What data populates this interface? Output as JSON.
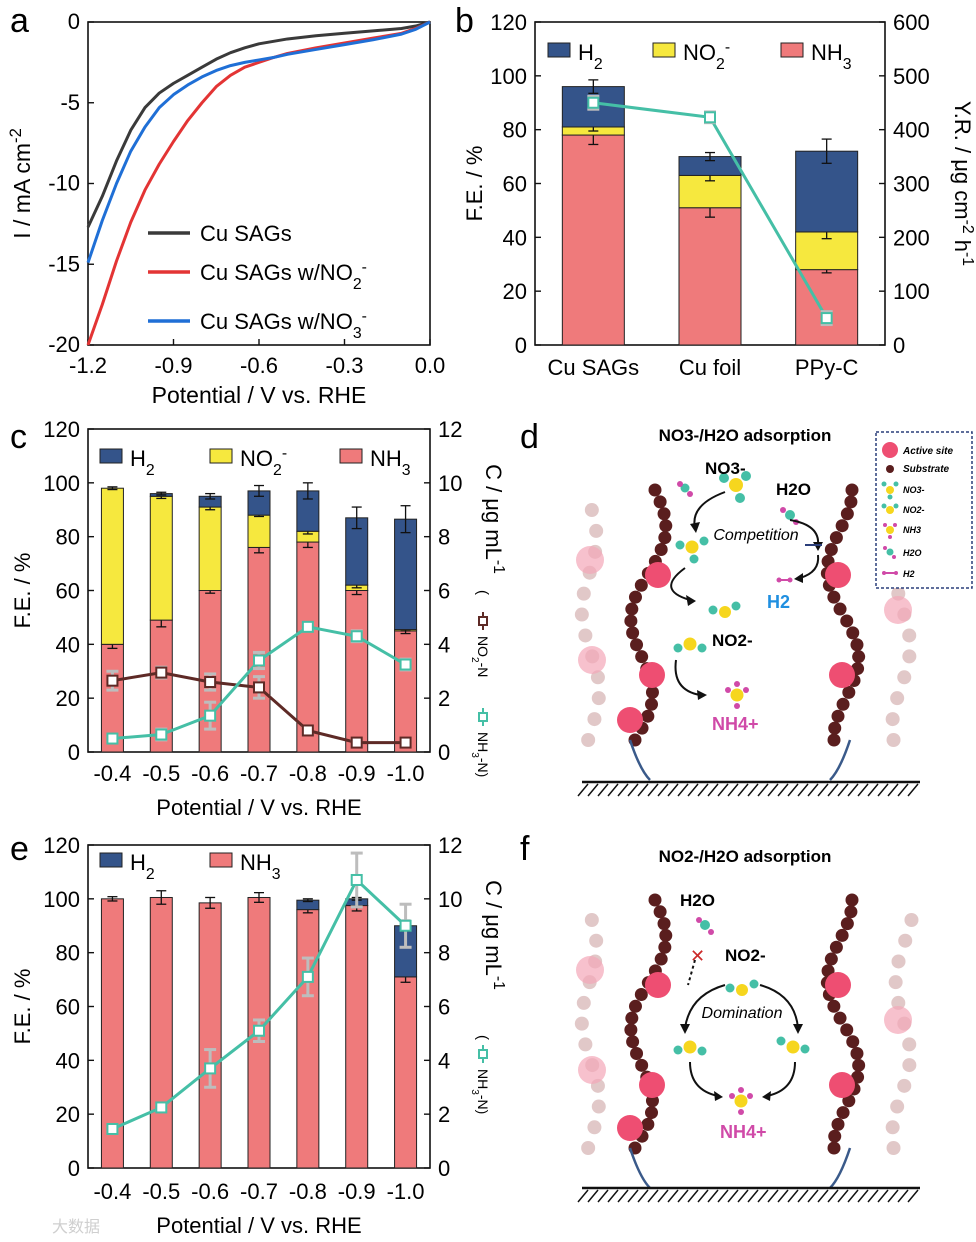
{
  "panel_letters": {
    "a": "a",
    "b": "b",
    "c": "c",
    "d": "d",
    "e": "e",
    "f": "f"
  },
  "colors": {
    "h2": "#34548a",
    "no2": "#f6e83e",
    "nh3": "#ef7a7b",
    "line_teal": "#45bfa6",
    "line_brown": "#5e2a26",
    "black_curve": "#3a3a3a",
    "red_curve": "#e33434",
    "blue_curve": "#1f6fd6",
    "active_site": "#ee4e72",
    "substrate": "#5a1e1e",
    "outline": "#222222"
  },
  "chart_data": [
    {
      "panel": "a",
      "type": "line",
      "xlabel": "Potential / V vs. RHE",
      "ylabel": "I / mA cm-2",
      "xlim": [
        -1.2,
        0.0
      ],
      "ylim": [
        -20,
        0
      ],
      "x_ticks": [
        "-1.2",
        "-0.9",
        "-0.6",
        "-0.3",
        "0.0"
      ],
      "y_ticks": [
        "0",
        "-5",
        "-10",
        "-15",
        "-20"
      ],
      "legend": [
        "Cu SAGs",
        "Cu SAGs w/NO2-",
        "Cu SAGs w/NO3-"
      ],
      "series": [
        {
          "name": "Cu SAGs",
          "color": "#3a3a3a",
          "x": [
            -1.2,
            -1.15,
            -1.1,
            -1.05,
            -1.0,
            -0.95,
            -0.9,
            -0.85,
            -0.8,
            -0.75,
            -0.7,
            -0.65,
            -0.6,
            -0.5,
            -0.4,
            -0.3,
            -0.2,
            -0.1,
            -0.05,
            0.0
          ],
          "y": [
            -12.7,
            -10.8,
            -8.6,
            -6.7,
            -5.3,
            -4.4,
            -3.8,
            -3.3,
            -2.8,
            -2.3,
            -1.9,
            -1.6,
            -1.35,
            -1.05,
            -0.85,
            -0.7,
            -0.55,
            -0.4,
            -0.25,
            0.0
          ]
        },
        {
          "name": "Cu SAGs w/NO2-",
          "color": "#e33434",
          "x": [
            -1.2,
            -1.15,
            -1.1,
            -1.05,
            -1.0,
            -0.95,
            -0.9,
            -0.85,
            -0.8,
            -0.75,
            -0.7,
            -0.65,
            -0.6,
            -0.55,
            -0.5,
            -0.4,
            -0.3,
            -0.2,
            -0.1,
            -0.05,
            0.0
          ],
          "y": [
            -20.0,
            -17.5,
            -14.8,
            -12.4,
            -10.4,
            -8.8,
            -7.4,
            -6.1,
            -5.0,
            -4.0,
            -3.3,
            -2.8,
            -2.5,
            -2.2,
            -1.95,
            -1.6,
            -1.3,
            -1.0,
            -0.7,
            -0.4,
            0.0
          ]
        },
        {
          "name": "Cu SAGs w/NO3-",
          "color": "#1f6fd6",
          "x": [
            -1.2,
            -1.15,
            -1.1,
            -1.05,
            -1.0,
            -0.95,
            -0.9,
            -0.85,
            -0.8,
            -0.75,
            -0.7,
            -0.65,
            -0.6,
            -0.55,
            -0.5,
            -0.4,
            -0.3,
            -0.2,
            -0.1,
            -0.05,
            0.0
          ],
          "y": [
            -14.9,
            -12.3,
            -10.0,
            -8.0,
            -6.5,
            -5.3,
            -4.5,
            -3.9,
            -3.4,
            -3.0,
            -2.7,
            -2.5,
            -2.35,
            -2.2,
            -2.0,
            -1.7,
            -1.4,
            -1.1,
            -0.75,
            -0.45,
            0.0
          ]
        }
      ]
    },
    {
      "panel": "b",
      "type": "bar",
      "categories": [
        "Cu SAGs",
        "Cu foil",
        "PPy-C"
      ],
      "ylabel": "F.E. / %",
      "ylim": [
        0,
        120
      ],
      "y_ticks": [
        "0",
        "20",
        "40",
        "60",
        "80",
        "100",
        "120"
      ],
      "y2label": "Y.R. / μg cm-2 h-1",
      "y2lim": [
        0,
        600
      ],
      "y2_ticks": [
        "0",
        "100",
        "200",
        "300",
        "400",
        "500",
        "600"
      ],
      "legend": [
        "H2",
        "NO2-",
        "NH3"
      ],
      "series": [
        {
          "name": "NH3",
          "values": [
            78,
            51,
            28
          ],
          "errors": [
            3.5,
            3.5,
            1.2
          ]
        },
        {
          "name": "NO2-",
          "values": [
            3,
            12,
            14
          ],
          "errors": [
            1.5,
            2,
            2.5
          ]
        },
        {
          "name": "H2",
          "values": [
            15,
            7,
            30
          ],
          "errors": [
            2.5,
            1.5,
            4.5
          ]
        }
      ],
      "yield_rate": {
        "values": [
          450,
          423,
          50
        ],
        "errors": [
          12,
          10,
          12
        ]
      }
    },
    {
      "panel": "c",
      "type": "bar",
      "categories": [
        "-0.4",
        "-0.5",
        "-0.6",
        "-0.7",
        "-0.8",
        "-0.9",
        "-1.0"
      ],
      "xlabel": "Potential / V vs. RHE",
      "ylabel": "F.E. / %",
      "ylim": [
        0,
        120
      ],
      "y_ticks": [
        "0",
        "20",
        "40",
        "60",
        "80",
        "100",
        "120"
      ],
      "y2label": "C / μg mL-1",
      "y2lim": [
        0,
        12
      ],
      "y2_ticks": [
        "0",
        "2",
        "4",
        "6",
        "8",
        "10",
        "12"
      ],
      "legend": [
        "H2",
        "NO2-",
        "NH3"
      ],
      "series": [
        {
          "name": "NH3",
          "values": [
            40,
            49,
            60,
            76,
            78,
            60,
            45
          ],
          "errors": [
            1.5,
            2.5,
            1,
            2,
            2,
            1.5,
            1
          ]
        },
        {
          "name": "NO2-",
          "values": [
            58,
            46,
            31,
            12,
            4,
            2,
            0.5
          ],
          "errors": [
            0.5,
            0.8,
            1,
            0.5,
            1,
            1,
            0.5
          ]
        },
        {
          "name": "H2",
          "values": [
            0,
            1,
            4,
            9,
            15,
            25,
            41
          ],
          "errors": [
            0,
            0.5,
            1,
            2,
            3,
            4,
            5
          ]
        }
      ],
      "lines": [
        {
          "name": "NO2--N",
          "values": [
            2.65,
            2.95,
            2.6,
            2.4,
            0.8,
            0.35,
            0.35
          ],
          "errors": [
            0.35,
            0.2,
            0.3,
            0.4,
            0.15,
            0.1,
            0.1
          ]
        },
        {
          "name": "NH3-N",
          "values": [
            0.5,
            0.65,
            1.35,
            3.4,
            4.65,
            4.3,
            3.25
          ],
          "errors": [
            0.1,
            0.2,
            0.5,
            0.3,
            0.1,
            0.2,
            0.2
          ]
        }
      ],
      "line_labels": [
        "NO2--N",
        "NH3-N"
      ]
    },
    {
      "panel": "e",
      "type": "bar",
      "categories": [
        "-0.4",
        "-0.5",
        "-0.6",
        "-0.7",
        "-0.8",
        "-0.9",
        "-1.0"
      ],
      "xlabel": "Potential / V vs. RHE",
      "ylabel": "F.E. / %",
      "ylim": [
        0,
        120
      ],
      "y_ticks": [
        "0",
        "20",
        "40",
        "60",
        "80",
        "100",
        "120"
      ],
      "y2label": "C / μg mL-1",
      "y2lim": [
        0,
        12
      ],
      "y2_ticks": [
        "0",
        "2",
        "4",
        "6",
        "8",
        "10",
        "12"
      ],
      "legend": [
        "H2",
        "NH3"
      ],
      "series": [
        {
          "name": "NH3",
          "values": [
            100,
            100.5,
            98.5,
            100.5,
            96,
            97.5,
            71
          ],
          "errors": [
            0.8,
            2.5,
            2,
            1.8,
            1.2,
            2,
            2
          ]
        },
        {
          "name": "H2",
          "values": [
            0,
            0,
            0,
            0,
            3.5,
            2.5,
            19
          ],
          "errors": [
            0,
            0,
            0,
            0,
            0.5,
            0.5,
            2
          ]
        }
      ],
      "lines": [
        {
          "name": "NH3-N",
          "values": [
            1.45,
            2.25,
            3.7,
            5.1,
            7.1,
            10.7,
            9.0
          ],
          "errors": [
            0.1,
            0.1,
            0.7,
            0.4,
            0.7,
            1.0,
            0.8
          ]
        }
      ],
      "line_labels": [
        "NH3-N"
      ]
    }
  ],
  "schematic_d": {
    "title": "NO3-/H2O adsorption",
    "labels": {
      "no3": "NO3-",
      "h2o": "H2O",
      "competition": "Competition",
      "h2": "H2",
      "no2": "NO2-",
      "nh4": "NH4+"
    },
    "legend": [
      "Active site",
      "Substrate",
      "NO3-",
      "NO2-",
      "NH3",
      "H2O",
      "H2"
    ]
  },
  "schematic_f": {
    "title": "NO2-/H2O adsorption",
    "labels": {
      "h2o": "H2O",
      "no2": "NO2-",
      "domination": "Domination",
      "nh4": "NH4+"
    }
  },
  "watermark": "大数据"
}
